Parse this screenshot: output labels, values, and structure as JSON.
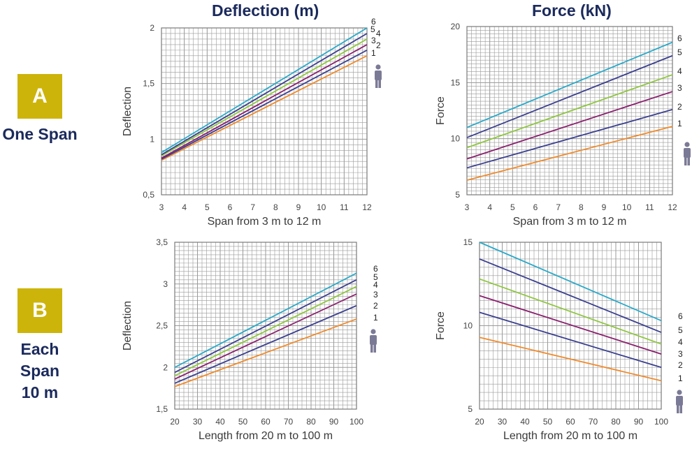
{
  "column_titles": [
    "Deflection (m)",
    "Force (kN)"
  ],
  "rows": [
    {
      "badge": "A",
      "label_lines": [
        "One Span"
      ]
    },
    {
      "badge": "B",
      "label_lines": [
        "Each Span",
        "10 m"
      ]
    }
  ],
  "colors": {
    "badge": "#cdb40a",
    "heading": "#1b2a5c",
    "grid": "#9a9a9a",
    "tick_text": "#444444",
    "axis_label": "#3a3a3a",
    "person_icon": "#7b7a96",
    "series": {
      "1": "#f08a2a",
      "2": "#3a3f8f",
      "3": "#8a1f6e",
      "4": "#8ec63f",
      "5": "#3a3f8f",
      "6": "#29a9c9"
    }
  },
  "chart_data": [
    {
      "id": "A-deflection",
      "type": "line",
      "title": "Deflection (m)",
      "xlabel": "Span from 3 m to 12 m",
      "ylabel": "Deflection",
      "xlim": [
        3,
        12
      ],
      "ylim": [
        0.5,
        2
      ],
      "x_ticks": [
        3,
        4,
        5,
        6,
        7,
        8,
        9,
        10,
        11,
        12
      ],
      "y_ticks": [
        0.5,
        1,
        1.5,
        2
      ],
      "y_tick_labels": [
        "0,5",
        "1",
        "1,5",
        "2"
      ],
      "grid": true,
      "legend_icon": "person-icon",
      "series": [
        {
          "name": "1",
          "x": [
            3,
            12
          ],
          "values": [
            0.81,
            1.75
          ]
        },
        {
          "name": "2",
          "x": [
            3,
            12
          ],
          "values": [
            0.82,
            1.8
          ]
        },
        {
          "name": "3",
          "x": [
            3,
            12
          ],
          "values": [
            0.83,
            1.85
          ]
        },
        {
          "name": "4",
          "x": [
            3,
            12
          ],
          "values": [
            0.85,
            1.9
          ]
        },
        {
          "name": "5",
          "x": [
            3,
            12
          ],
          "values": [
            0.86,
            1.95
          ]
        },
        {
          "name": "6",
          "x": [
            3,
            12
          ],
          "values": [
            0.88,
            2.0
          ]
        }
      ]
    },
    {
      "id": "A-force",
      "type": "line",
      "title": "Force (kN)",
      "xlabel": "Span from 3 m to 12 m",
      "ylabel": "Force",
      "xlim": [
        3,
        12
      ],
      "ylim": [
        5,
        20
      ],
      "x_ticks": [
        3,
        4,
        5,
        6,
        7,
        8,
        9,
        10,
        11,
        12
      ],
      "y_ticks": [
        5,
        10,
        15,
        20
      ],
      "y_tick_labels": [
        "5",
        "10",
        "15",
        "20"
      ],
      "grid": true,
      "legend_icon": "person-icon",
      "series": [
        {
          "name": "1",
          "x": [
            3,
            12
          ],
          "values": [
            6.3,
            11.1
          ]
        },
        {
          "name": "2",
          "x": [
            3,
            12
          ],
          "values": [
            7.4,
            12.6
          ]
        },
        {
          "name": "3",
          "x": [
            3,
            12
          ],
          "values": [
            8.2,
            14.2
          ]
        },
        {
          "name": "4",
          "x": [
            3,
            12
          ],
          "values": [
            9.2,
            15.7
          ]
        },
        {
          "name": "5",
          "x": [
            3,
            12
          ],
          "values": [
            10.1,
            17.4
          ]
        },
        {
          "name": "6",
          "x": [
            3,
            12
          ],
          "values": [
            11.0,
            18.6
          ]
        }
      ]
    },
    {
      "id": "B-deflection",
      "type": "line",
      "title": "",
      "xlabel": "Length from 20 m to 100 m",
      "ylabel": "Deflection",
      "xlim": [
        20,
        100
      ],
      "ylim": [
        1.5,
        3.5
      ],
      "x_ticks": [
        20,
        30,
        40,
        50,
        60,
        70,
        80,
        90,
        100
      ],
      "y_ticks": [
        1.5,
        2,
        2.5,
        3,
        3.5
      ],
      "y_tick_labels": [
        "1,5",
        "2",
        "2,5",
        "3",
        "3,5"
      ],
      "grid": true,
      "legend_icon": "person-icon",
      "series": [
        {
          "name": "1",
          "x": [
            20,
            100
          ],
          "values": [
            1.77,
            2.58
          ]
        },
        {
          "name": "2",
          "x": [
            20,
            100
          ],
          "values": [
            1.81,
            2.74
          ]
        },
        {
          "name": "3",
          "x": [
            20,
            100
          ],
          "values": [
            1.86,
            2.88
          ]
        },
        {
          "name": "4",
          "x": [
            20,
            100
          ],
          "values": [
            1.9,
            2.97
          ]
        },
        {
          "name": "5",
          "x": [
            20,
            100
          ],
          "values": [
            1.94,
            3.05
          ]
        },
        {
          "name": "6",
          "x": [
            20,
            100
          ],
          "values": [
            2.0,
            3.13
          ]
        }
      ]
    },
    {
      "id": "B-force",
      "type": "line",
      "title": "",
      "xlabel": "Length from 20 m to 100 m",
      "ylabel": "Force",
      "xlim": [
        20,
        100
      ],
      "ylim": [
        5,
        15
      ],
      "x_ticks": [
        20,
        30,
        40,
        50,
        60,
        70,
        80,
        90,
        100
      ],
      "y_ticks": [
        5,
        10,
        15
      ],
      "y_tick_labels": [
        "5",
        "10",
        "15"
      ],
      "grid": true,
      "legend_icon": "person-icon",
      "series": [
        {
          "name": "1",
          "x": [
            20,
            100
          ],
          "values": [
            9.3,
            6.7
          ]
        },
        {
          "name": "2",
          "x": [
            20,
            100
          ],
          "values": [
            10.8,
            7.5
          ]
        },
        {
          "name": "3",
          "x": [
            20,
            100
          ],
          "values": [
            11.8,
            8.3
          ]
        },
        {
          "name": "4",
          "x": [
            20,
            100
          ],
          "values": [
            12.8,
            8.9
          ]
        },
        {
          "name": "5",
          "x": [
            20,
            100
          ],
          "values": [
            14.0,
            9.6
          ]
        },
        {
          "name": "6",
          "x": [
            20,
            100
          ],
          "values": [
            15.0,
            10.3
          ]
        }
      ]
    }
  ]
}
